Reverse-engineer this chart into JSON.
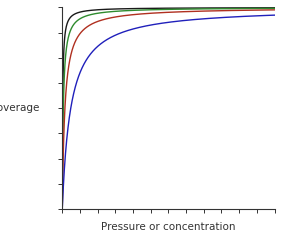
{
  "title": "",
  "xlabel": "Pressure or concentration",
  "ylabel": "coverage",
  "xlim": [
    0,
    10
  ],
  "ylim": [
    0,
    1.0
  ],
  "curves": [
    {
      "K": 50,
      "color": "#1a1a1a",
      "lw": 1.0
    },
    {
      "K": 20,
      "color": "#2e8b2e",
      "lw": 1.0
    },
    {
      "K": 8,
      "color": "#b03020",
      "lw": 1.0
    },
    {
      "K": 2.5,
      "color": "#2020bb",
      "lw": 1.0
    }
  ],
  "background_color": "#ffffff",
  "plot_bg_color": "#ffffff",
  "tick_color": "#333333",
  "xlabel_fontsize": 7.5,
  "ylabel_fontsize": 7.5,
  "spine_color": "#333333",
  "n_xticks": 13,
  "n_yticks": 9
}
